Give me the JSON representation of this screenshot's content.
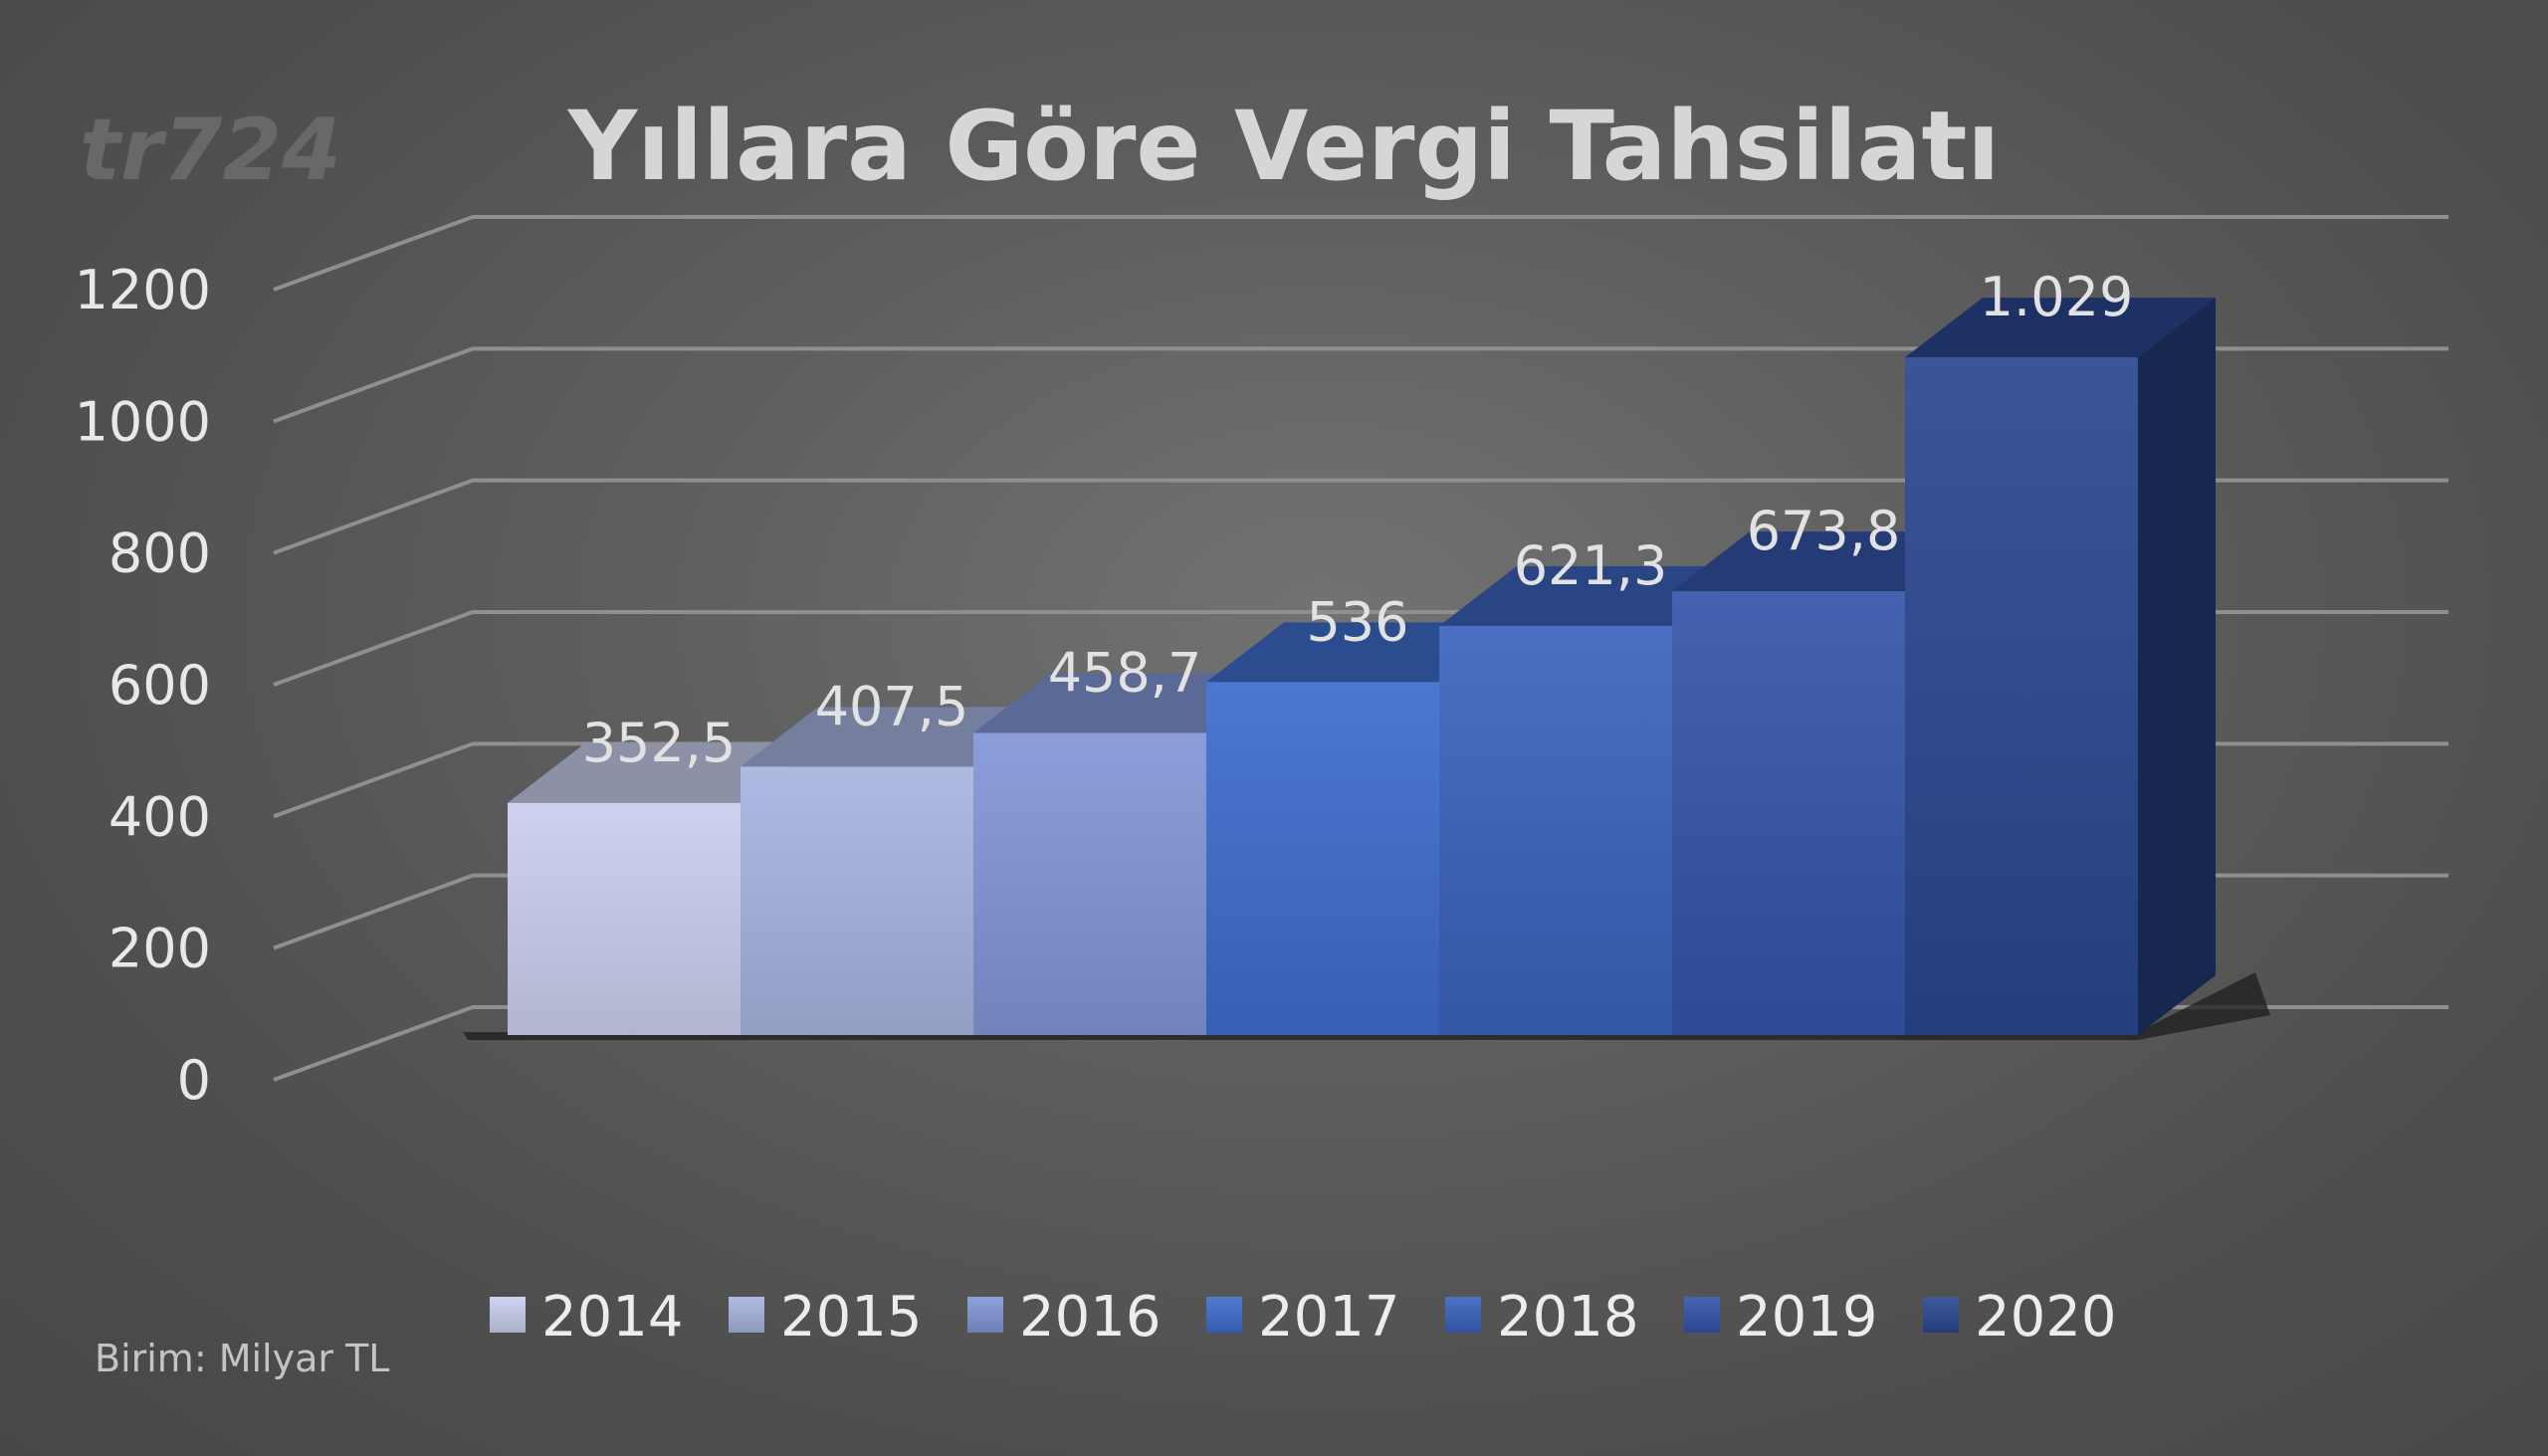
{
  "logo_text": "tr724",
  "unit_note": "Birim: Milyar TL",
  "chart_data": {
    "type": "bar",
    "style": "3d-column",
    "title": "Yıllara Göre Vergi Tahsilatı",
    "xlabel": "",
    "ylabel": "",
    "ylim": [
      0,
      1200
    ],
    "yticks": [
      0,
      200,
      400,
      600,
      800,
      1000,
      1200
    ],
    "ytick_labels": [
      "0",
      "200",
      "400",
      "600",
      "800",
      "1000",
      "1200"
    ],
    "grid": true,
    "legend_position": "bottom",
    "series": [
      {
        "name": "2014",
        "value": 352.5,
        "label": "352,5",
        "color": "#c9cfee"
      },
      {
        "name": "2015",
        "value": 407.5,
        "label": "407,5",
        "color": "#a7b4e0"
      },
      {
        "name": "2016",
        "value": 458.7,
        "label": "458,7",
        "color": "#8196d6"
      },
      {
        "name": "2017",
        "value": 536,
        "label": "536",
        "color": "#3e6ccc"
      },
      {
        "name": "2018",
        "value": 621.3,
        "label": "621,3",
        "color": "#3a62bd"
      },
      {
        "name": "2019",
        "value": 673.8,
        "label": "673,8",
        "color": "#3454a8"
      },
      {
        "name": "2020",
        "value": 1029,
        "label": "1.029",
        "color": "#2a4690"
      }
    ]
  }
}
